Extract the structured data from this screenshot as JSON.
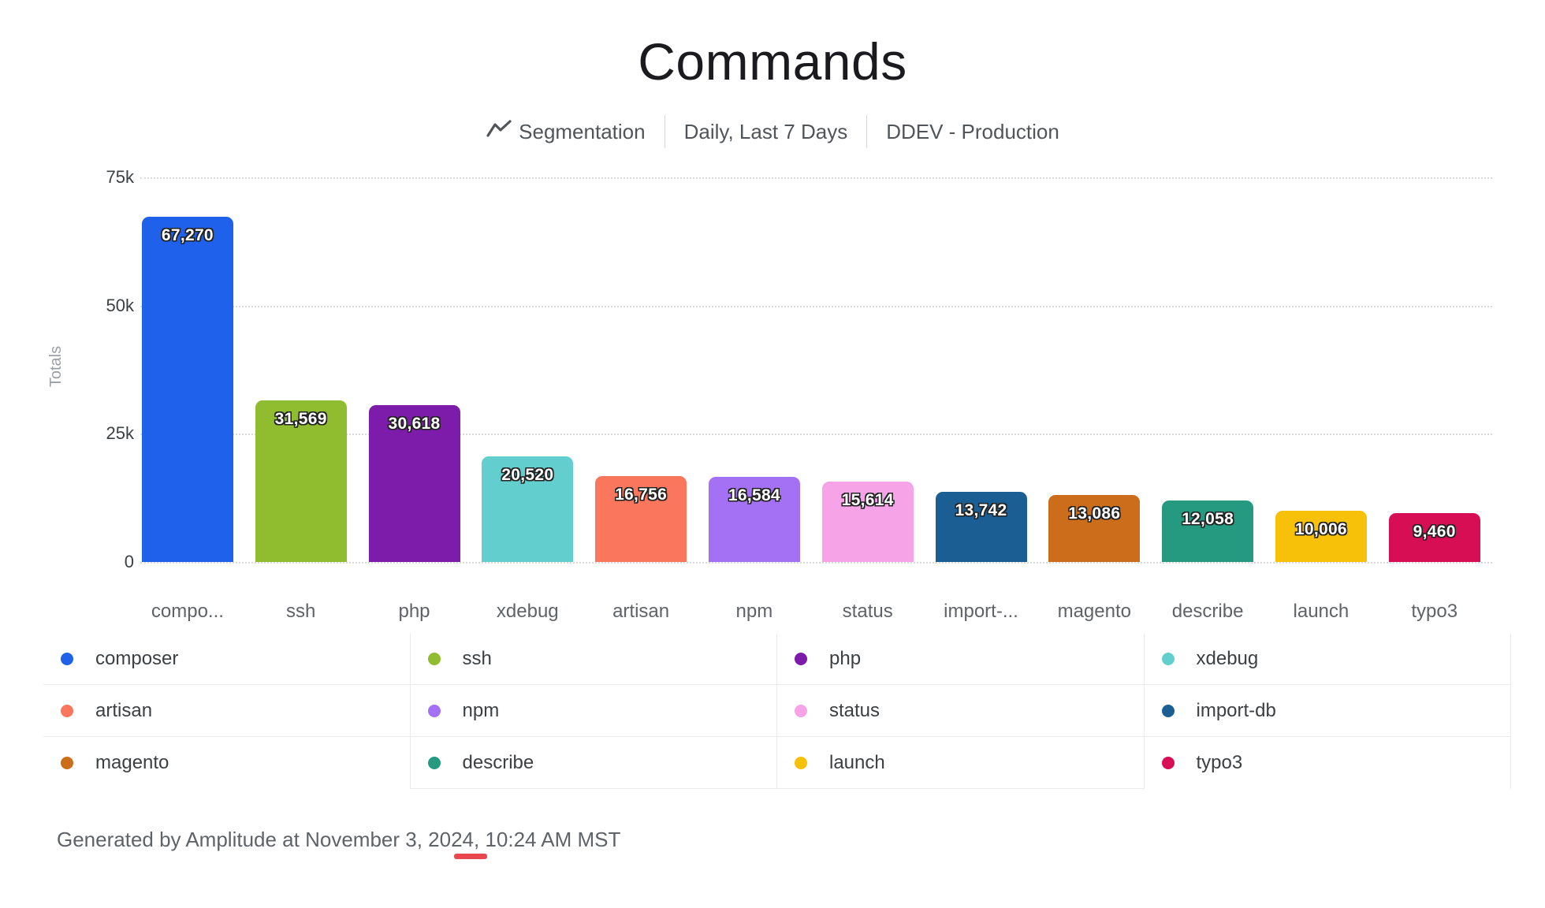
{
  "title": "Commands",
  "subtitle": {
    "segmentation": "Segmentation",
    "range": "Daily, Last 7 Days",
    "project": "DDEV - Production"
  },
  "chart_data": {
    "type": "bar",
    "title": "Commands",
    "xlabel": "",
    "ylabel": "Totals",
    "ylim": [
      0,
      75000
    ],
    "grid": "dotted-horizontal",
    "legend_position": "bottom",
    "yticks": [
      {
        "value": 0,
        "label": "0"
      },
      {
        "value": 25000,
        "label": "25k"
      },
      {
        "value": 50000,
        "label": "50k"
      },
      {
        "value": 75000,
        "label": "75k"
      }
    ],
    "categories": [
      "composer",
      "ssh",
      "php",
      "xdebug",
      "artisan",
      "npm",
      "status",
      "import-db",
      "magento",
      "describe",
      "launch",
      "typo3"
    ],
    "x_tick_labels": [
      "compo...",
      "ssh",
      "php",
      "xdebug",
      "artisan",
      "npm",
      "status",
      "import-...",
      "magento",
      "describe",
      "launch",
      "typo3"
    ],
    "values": [
      67270,
      31569,
      30618,
      20520,
      16756,
      16584,
      15614,
      13742,
      13086,
      12058,
      10006,
      9460
    ],
    "value_labels": [
      "67,270",
      "31,569",
      "30,618",
      "20,520",
      "16,756",
      "16,584",
      "15,614",
      "13,742",
      "13,086",
      "12,058",
      "10,006",
      "9,460"
    ],
    "colors": [
      "#2061ec",
      "#90bc2f",
      "#7d1caa",
      "#62cfce",
      "#fa765c",
      "#a471f5",
      "#f6a3e8",
      "#1a5e94",
      "#cb6d1b",
      "#259a81",
      "#f6c108",
      "#d80e55"
    ]
  },
  "footer": {
    "text": "Generated by Amplitude at November 3, 2024, 10:24 AM MST"
  },
  "marks": {
    "red_underline_color": "#e8474e"
  }
}
